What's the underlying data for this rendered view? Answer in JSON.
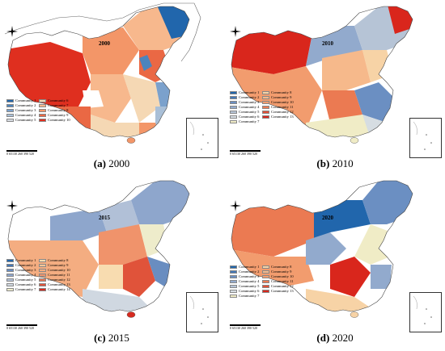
{
  "panels": [
    {
      "year": "2000",
      "caption_letter": "(a)",
      "caption_year": "2000",
      "legend": [
        "Community 1",
        "Community 2",
        "Community 3",
        "Community 4",
        "Community 5",
        "Community 6",
        "Community 7",
        "Community 8",
        "Community 9",
        "Community 10"
      ],
      "colors": [
        "#2166ac",
        "#4c84bd",
        "#7ba1cc",
        "#a9bfd7",
        "#d6dbe2",
        "#f5d8b4",
        "#f7b88d",
        "#f39668",
        "#ea6844",
        "#df2f1f"
      ]
    },
    {
      "year": "2010",
      "caption_letter": "(b)",
      "caption_year": "2010",
      "legend": [
        "Community 1",
        "Community 2",
        "Community 3",
        "Community 4",
        "Community 5",
        "Community 6",
        "Community 7",
        "Community 8",
        "Community 9",
        "Community 10",
        "Community 11",
        "Community 12",
        "Community 13"
      ],
      "colors": [
        "#2166ac",
        "#4478b6",
        "#6b8fc2",
        "#92aacd",
        "#b6c4d6",
        "#d6dde2",
        "#f0ecc6",
        "#f7d3a6",
        "#f6b98b",
        "#f29c6e",
        "#eb7a52",
        "#e24f35",
        "#d9261c"
      ]
    },
    {
      "year": "2015",
      "caption_letter": "(c)",
      "caption_year": "2015",
      "legend": [
        "Community 1",
        "Community 2",
        "Community 3",
        "Community 4",
        "Community 5",
        "Community 6",
        "Community 7",
        "Community 8",
        "Community 9",
        "Community 10",
        "Community 11",
        "Community 12",
        "Community 13",
        "Community 14"
      ],
      "colors": [
        "#2166ac",
        "#4477b5",
        "#698dc0",
        "#8ea6cc",
        "#b1c0d7",
        "#d0d8e1",
        "#eeeccb",
        "#f8dcb0",
        "#f7c698",
        "#f4ad81",
        "#f0936b",
        "#e97553",
        "#e0533a",
        "#d62a1f"
      ]
    },
    {
      "year": "2020",
      "caption_letter": "(d)",
      "caption_year": "2020",
      "legend": [
        "Community 1",
        "Community 2",
        "Community 3",
        "Community 4",
        "Community 5",
        "Community 6",
        "Community 7",
        "Community 8",
        "Community 9",
        "Community 10",
        "Community 11",
        "Community 12",
        "Community 13"
      ],
      "colors": [
        "#2166ac",
        "#4478b6",
        "#6b8fc2",
        "#92aacd",
        "#b6c4d6",
        "#d6dde2",
        "#f0ecc6",
        "#f7d3a6",
        "#f6b98b",
        "#f29c6e",
        "#eb7a52",
        "#e24f35",
        "#d9261c"
      ]
    }
  ],
  "scale": {
    "ticks": "0  65130   260   390   520",
    "unit": "Miles"
  }
}
